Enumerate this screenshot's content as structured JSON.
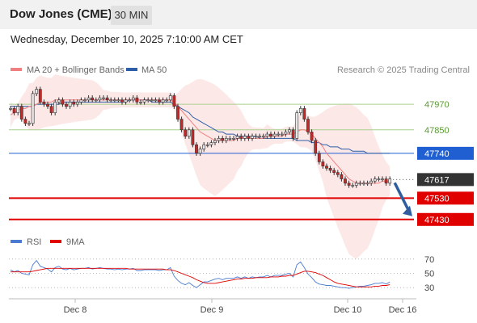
{
  "header": {
    "title": "Dow Jones (CME)",
    "timeframe": "30 MIN"
  },
  "datetime": "Wednesday, December 10, 2025 7:10:00 AM CET",
  "legend": {
    "ma20": "MA 20 + Bollinger Bands",
    "ma50": "MA 50",
    "credit": "Research © 2025 Trading Central"
  },
  "rsi_legend": {
    "rsi": "RSI",
    "ma": "9MA"
  },
  "colors": {
    "ma20": "#f08080",
    "ma50": "#2d5fa8",
    "bands": "#fde2e2",
    "up": "#e8e8e8",
    "down": "#c62828",
    "resistance": "#a8d08d",
    "pivot": "#1f5fd1",
    "support": "#e00000",
    "last": "#333333",
    "arrow": "#2e5e9e"
  },
  "chart_data": [
    {
      "type": "candlestick",
      "title": "Dow Jones (CME)",
      "timeframe": "30 MIN",
      "x_tick_labels": [
        "Dec 8",
        "Dec 9",
        "Dec 10",
        "Dec 16"
      ],
      "ylim": [
        47380,
        48080
      ],
      "levels": [
        {
          "label": "47970",
          "value": 47970,
          "kind": "resistance"
        },
        {
          "label": "47850",
          "value": 47850,
          "kind": "resistance"
        },
        {
          "label": "47740",
          "value": 47740,
          "kind": "pivot"
        },
        {
          "label": "47617",
          "value": 47617,
          "kind": "last"
        },
        {
          "label": "47530",
          "value": 47530,
          "kind": "support"
        },
        {
          "label": "47430",
          "value": 47430,
          "kind": "support"
        }
      ],
      "closes": [
        47950,
        47930,
        47960,
        47900,
        47880,
        47880,
        48020,
        48040,
        47980,
        47970,
        47960,
        47930,
        47980,
        47990,
        47970,
        47960,
        47980,
        47970,
        47980,
        47990,
        47990,
        48000,
        47990,
        47990,
        48000,
        48000,
        47990,
        47990,
        47990,
        47990,
        47980,
        47990,
        47990,
        48000,
        47980,
        47980,
        47990,
        47990,
        47990,
        47990,
        47980,
        47990,
        47990,
        48010,
        47960,
        47900,
        47850,
        47820,
        47850,
        47780,
        47740,
        47760,
        47780,
        47780,
        47790,
        47800,
        47810,
        47800,
        47810,
        47810,
        47810,
        47820,
        47810,
        47820,
        47810,
        47820,
        47820,
        47820,
        47820,
        47830,
        47820,
        47830,
        47830,
        47830,
        47840,
        47850,
        47810,
        47930,
        47950,
        47900,
        47840,
        47800,
        47740,
        47700,
        47680,
        47670,
        47660,
        47650,
        47640,
        47620,
        47600,
        47590,
        47590,
        47600,
        47600,
        47600,
        47600,
        47610,
        47620,
        47620,
        47620,
        47600,
        47620
      ],
      "series": [
        {
          "name": "MA 20 + Bollinger Bands",
          "values": [
            47920,
            47930,
            47940,
            47950,
            47950,
            47960,
            47960,
            47970,
            47980,
            47980,
            47980,
            47980,
            47990,
            47990,
            47990,
            47990,
            47990,
            47990,
            47990,
            47990,
            47990,
            47990,
            47990,
            47990,
            47990,
            47990,
            47990,
            47990,
            47990,
            47990,
            47990,
            47990,
            47990,
            47990,
            47990,
            47990,
            47990,
            47990,
            47990,
            47990,
            47990,
            47990,
            47990,
            47990,
            47980,
            47960,
            47940,
            47920,
            47900,
            47880,
            47860,
            47840,
            47830,
            47820,
            47810,
            47800,
            47800,
            47800,
            47800,
            47800,
            47800,
            47810,
            47810,
            47810,
            47810,
            47810,
            47810,
            47810,
            47810,
            47820,
            47820,
            47820,
            47820,
            47820,
            47830,
            47830,
            47830,
            47840,
            47850,
            47850,
            47840,
            47830,
            47810,
            47790,
            47770,
            47740,
            47720,
            47700,
            47680,
            47660,
            47640,
            47620,
            47610,
            47600,
            47600,
            47600,
            47600,
            47600,
            47600,
            47600,
            47610,
            47610,
            47610
          ]
        },
        {
          "name": "MA 50",
          "values": [
            47960,
            47960,
            47960,
            47960,
            47960,
            47960,
            47960,
            47970,
            47970,
            47970,
            47970,
            47970,
            47970,
            47970,
            47980,
            47980,
            47980,
            47980,
            47980,
            47980,
            47980,
            47980,
            47980,
            47980,
            47980,
            47980,
            47980,
            47980,
            47980,
            47980,
            47980,
            47980,
            47990,
            47990,
            47990,
            47990,
            47990,
            47990,
            47980,
            47980,
            47980,
            47980,
            47980,
            47980,
            47970,
            47960,
            47950,
            47940,
            47930,
            47910,
            47900,
            47890,
            47880,
            47870,
            47860,
            47850,
            47840,
            47840,
            47830,
            47830,
            47830,
            47820,
            47820,
            47820,
            47820,
            47820,
            47820,
            47810,
            47810,
            47810,
            47810,
            47810,
            47810,
            47810,
            47810,
            47810,
            47810,
            47800,
            47800,
            47800,
            47800,
            47790,
            47790,
            47790,
            47780,
            47780,
            47770,
            47770,
            47770,
            47760,
            47760,
            47760,
            47750,
            47750,
            47750,
            47750,
            47740,
            47740,
            47740,
            47740,
            47740,
            47740,
            47740
          ]
        }
      ],
      "forecast": {
        "from": 47617,
        "to": 47430,
        "direction": "down"
      }
    },
    {
      "type": "line",
      "title": "RSI",
      "yticks": [
        70,
        50,
        30
      ],
      "ylim": [
        20,
        80
      ],
      "x_tick_labels": [
        "Dec 8",
        "Dec 9",
        "Dec 10",
        "Dec 16"
      ],
      "series": [
        {
          "name": "RSI",
          "values": [
            55,
            52,
            54,
            50,
            49,
            48,
            62,
            68,
            60,
            58,
            56,
            52,
            58,
            60,
            56,
            55,
            57,
            55,
            56,
            57,
            57,
            58,
            56,
            57,
            58,
            57,
            56,
            56,
            55,
            56,
            55,
            56,
            56,
            57,
            54,
            54,
            55,
            55,
            55,
            55,
            54,
            55,
            55,
            58,
            46,
            40,
            36,
            34,
            37,
            33,
            30,
            34,
            38,
            38,
            40,
            42,
            43,
            41,
            43,
            43,
            43,
            45,
            43,
            45,
            43,
            45,
            44,
            45,
            45,
            47,
            45,
            47,
            47,
            47,
            49,
            50,
            45,
            62,
            66,
            58,
            49,
            44,
            38,
            35,
            34,
            33,
            33,
            32,
            31,
            30,
            30,
            29,
            30,
            31,
            32,
            32,
            33,
            34,
            36,
            36,
            37,
            35,
            38
          ]
        },
        {
          "name": "9MA",
          "values": [
            52,
            52,
            52,
            52,
            52,
            52,
            53,
            54,
            55,
            56,
            57,
            57,
            57,
            57,
            57,
            57,
            57,
            57,
            57,
            57,
            57,
            57,
            57,
            57,
            57,
            57,
            57,
            57,
            57,
            57,
            57,
            57,
            56,
            56,
            56,
            56,
            56,
            56,
            56,
            56,
            56,
            56,
            55,
            55,
            54,
            52,
            50,
            48,
            46,
            44,
            41,
            39,
            37,
            36,
            36,
            36,
            37,
            38,
            39,
            40,
            41,
            42,
            42,
            43,
            43,
            43,
            44,
            44,
            44,
            44,
            45,
            45,
            45,
            46,
            46,
            47,
            47,
            49,
            51,
            53,
            53,
            52,
            51,
            49,
            47,
            44,
            41,
            38,
            36,
            35,
            34,
            33,
            32,
            31,
            31,
            31,
            31,
            31,
            32,
            32,
            33,
            33,
            34
          ]
        }
      ]
    }
  ]
}
